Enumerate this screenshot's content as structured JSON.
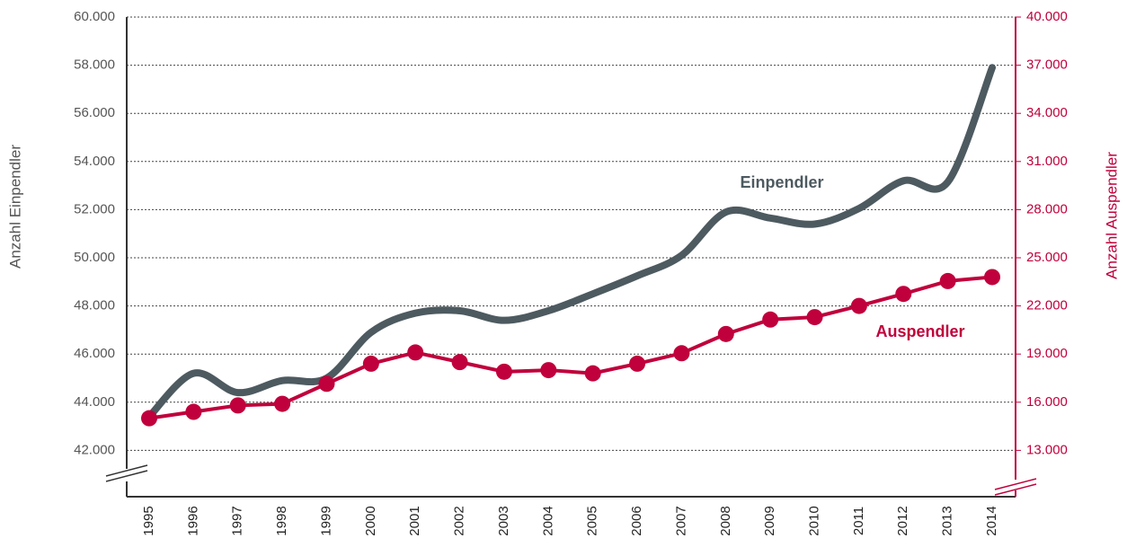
{
  "chart_data": {
    "type": "line",
    "y_label": "Anzahl Einpendler",
    "y2_label": "Anzahl Auspendler",
    "categories": [
      "1995",
      "1996",
      "1997",
      "1998",
      "1999",
      "2000",
      "2001",
      "2002",
      "2003",
      "2004",
      "2005",
      "2006",
      "2007",
      "2008",
      "2009",
      "2010",
      "2011",
      "2012",
      "2013",
      "2014"
    ],
    "series": [
      {
        "name": "Einpendler",
        "color": "#4d5a60",
        "axis": "y",
        "smooth": true,
        "markers": false,
        "values": [
          43400,
          45200,
          44400,
          44900,
          45000,
          46900,
          47700,
          47800,
          47400,
          47800,
          48500,
          49250,
          50100,
          51900,
          51650,
          51400,
          52050,
          53200,
          53150,
          57900
        ]
      },
      {
        "name": "Auspendler",
        "color": "#c0003c",
        "axis": "y2",
        "smooth": false,
        "markers": true,
        "values": [
          15000,
          15400,
          15800,
          15900,
          17150,
          18400,
          19100,
          18500,
          17900,
          18000,
          17800,
          18400,
          19050,
          20250,
          21150,
          21300,
          22000,
          22750,
          23550,
          23800
        ]
      }
    ],
    "ylim": [
      40000,
      60000
    ],
    "yticks": [
      {
        "value": 42000,
        "label": "42.000"
      },
      {
        "value": 44000,
        "label": "44.000"
      },
      {
        "value": 46000,
        "label": "46.000"
      },
      {
        "value": 48000,
        "label": "48.000"
      },
      {
        "value": 50000,
        "label": "50.000"
      },
      {
        "value": 52000,
        "label": "52.000"
      },
      {
        "value": 54000,
        "label": "54.000"
      },
      {
        "value": 56000,
        "label": "56.000"
      },
      {
        "value": 58000,
        "label": "58.000"
      },
      {
        "value": 60000,
        "label": "60.000"
      }
    ],
    "y2lim": [
      10000,
      40000
    ],
    "y2ticks": [
      {
        "value": 13000,
        "label": "13.000"
      },
      {
        "value": 16000,
        "label": "16.000"
      },
      {
        "value": 19000,
        "label": "19.000"
      },
      {
        "value": 22000,
        "label": "22.000"
      },
      {
        "value": 25000,
        "label": "25.000"
      },
      {
        "value": 28000,
        "label": "28.000"
      },
      {
        "value": 31000,
        "label": "31.000"
      },
      {
        "value": 34000,
        "label": "34.000"
      },
      {
        "value": 37000,
        "label": "37.000"
      },
      {
        "value": 40000,
        "label": "40.000"
      }
    ],
    "grid": true
  }
}
